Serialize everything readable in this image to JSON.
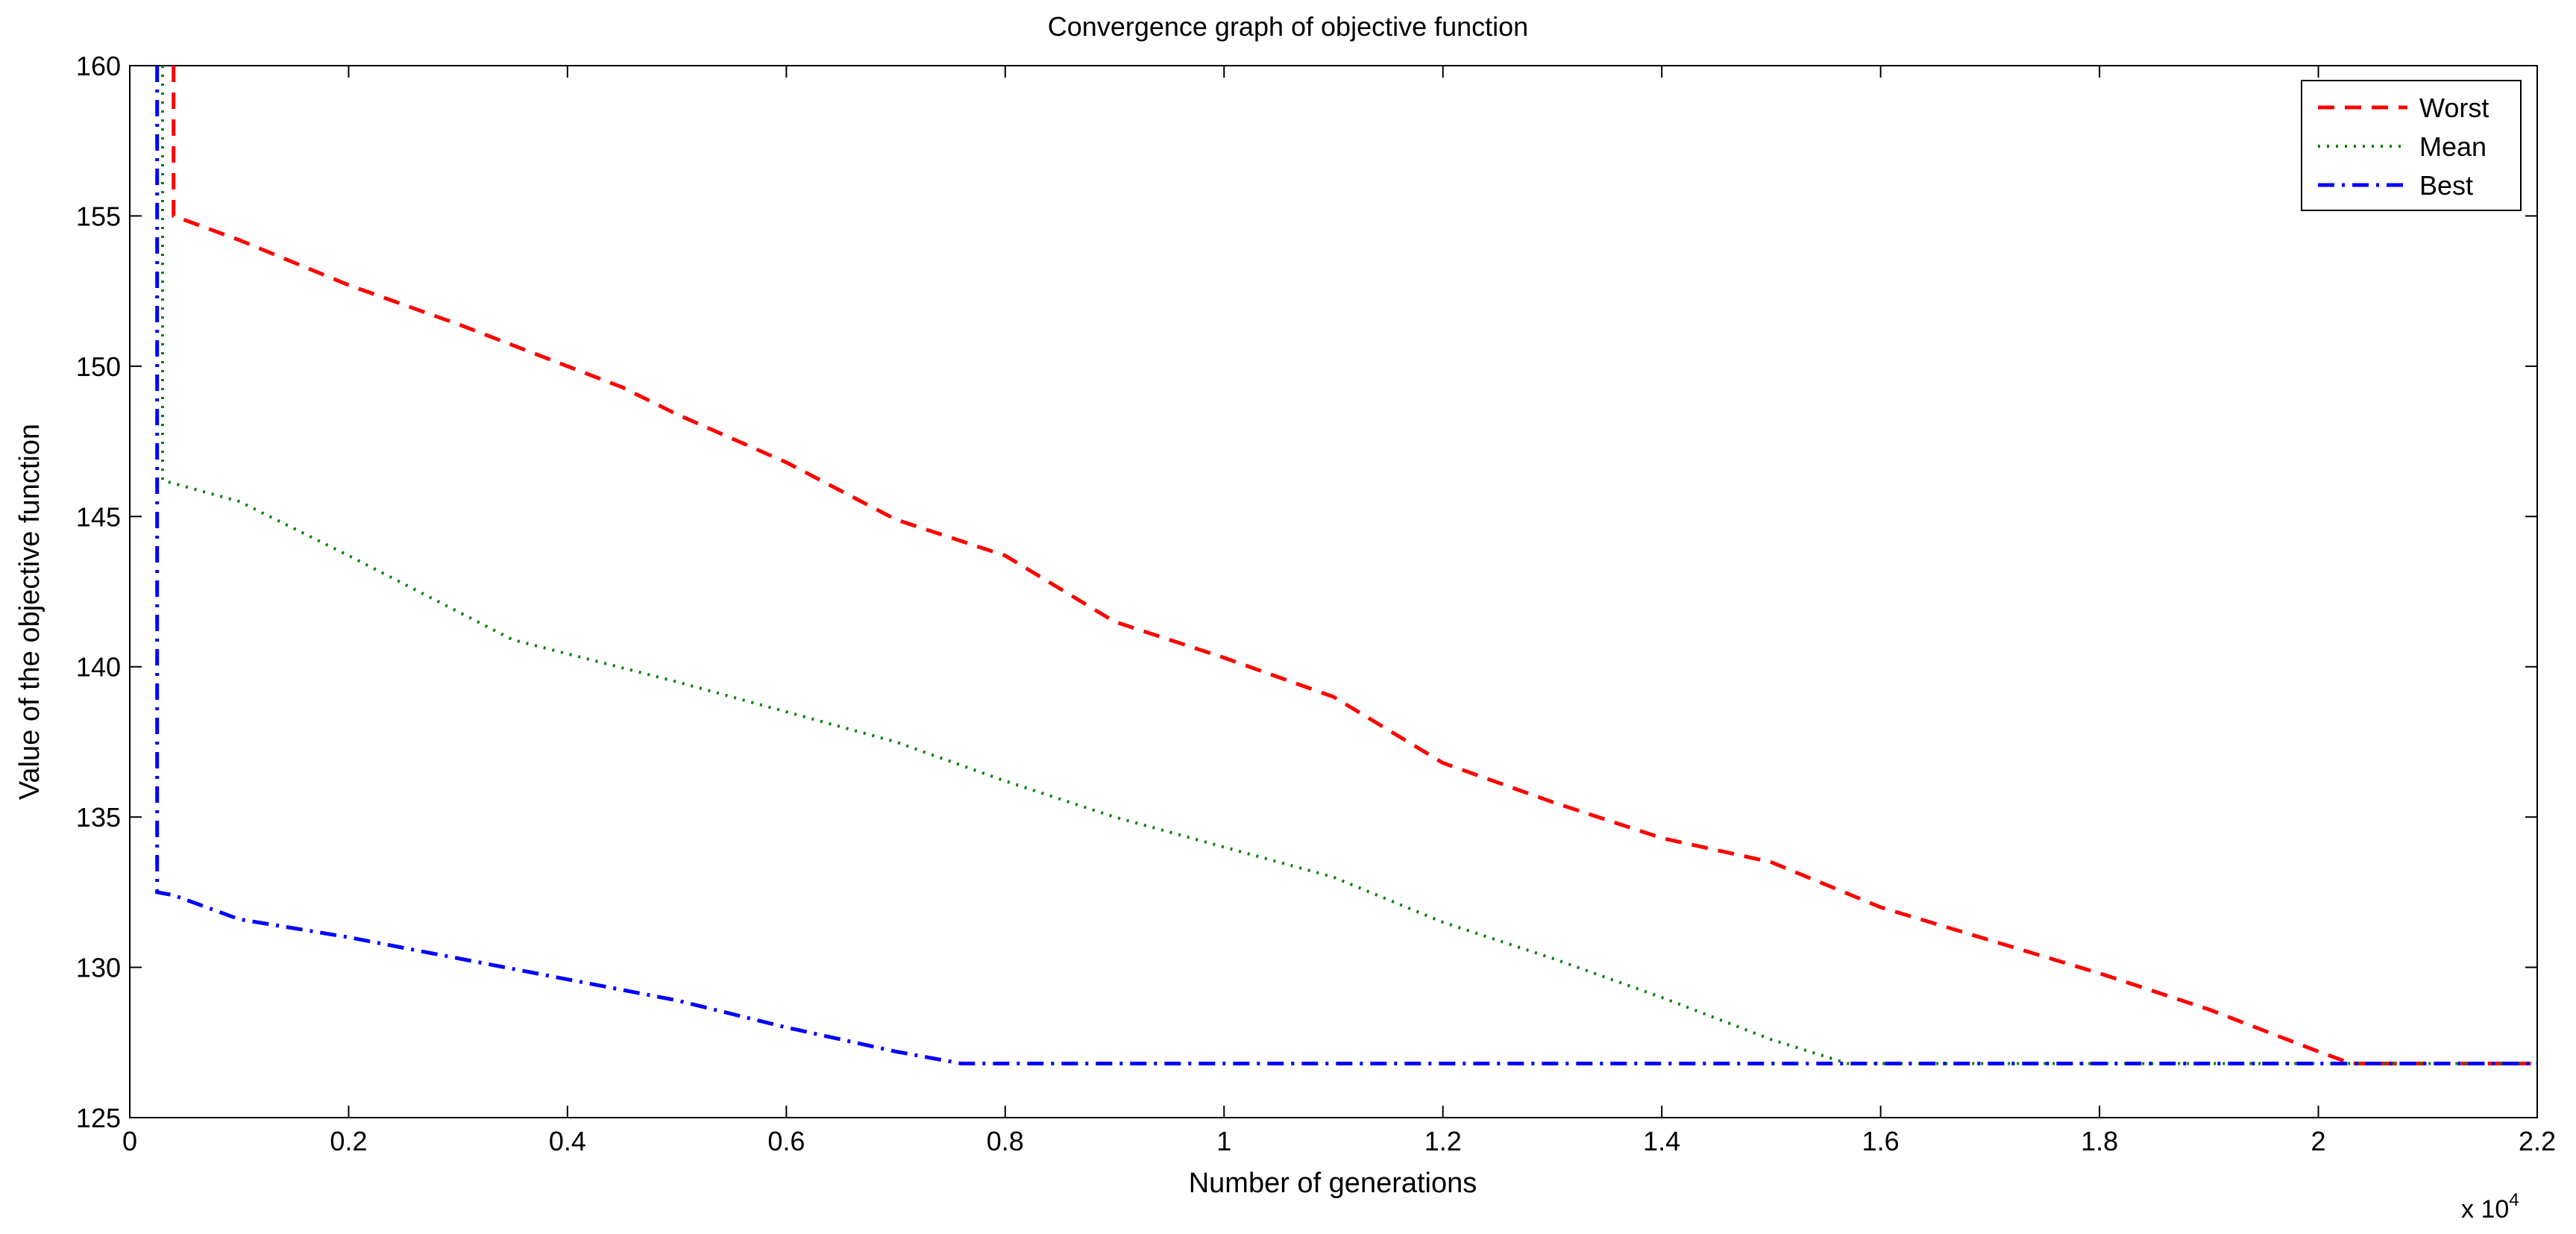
{
  "chart_data": {
    "type": "line",
    "title": "Convergence graph of objective function",
    "xlabel": "Number of generations",
    "ylabel": "Value of the objective function",
    "x_exponent_base": "x 10",
    "x_exponent_power": "4",
    "xlim": [
      0,
      2.2
    ],
    "ylim": [
      125,
      160
    ],
    "x_ticks": [
      0,
      0.2,
      0.4,
      0.6,
      0.8,
      1,
      1.2,
      1.4,
      1.6,
      1.8,
      2,
      2.2
    ],
    "x_tick_labels": [
      "0",
      "0.2",
      "0.4",
      "0.6",
      "0.8",
      "1",
      "1.2",
      "1.4",
      "1.6",
      "1.8",
      "2",
      "2.2"
    ],
    "y_ticks": [
      125,
      130,
      135,
      140,
      145,
      150,
      155,
      160
    ],
    "y_tick_labels": [
      "125",
      "130",
      "135",
      "140",
      "145",
      "150",
      "155",
      "160"
    ],
    "grid": false,
    "legend_position": "top-right",
    "series": [
      {
        "name": "Worst",
        "color": "#ff0000",
        "style": "dashed",
        "x": [
          0.04,
          0.04,
          0.1,
          0.2,
          0.3,
          0.4,
          0.45,
          0.5,
          0.6,
          0.7,
          0.8,
          0.9,
          1.0,
          1.1,
          1.2,
          1.3,
          1.4,
          1.5,
          1.6,
          1.7,
          1.8,
          1.9,
          2.0,
          2.03,
          2.2
        ],
        "y": [
          160,
          155,
          154.2,
          152.7,
          151.4,
          150.0,
          149.3,
          148.4,
          146.8,
          144.9,
          143.7,
          141.5,
          140.3,
          139.0,
          136.8,
          135.5,
          134.3,
          133.5,
          132.0,
          130.9,
          129.8,
          128.6,
          127.2,
          126.8,
          126.8
        ]
      },
      {
        "name": "Mean",
        "color": "#008000",
        "style": "dotted",
        "x": [
          0.03,
          0.03,
          0.1,
          0.2,
          0.35,
          0.5,
          0.6,
          0.7,
          0.8,
          0.9,
          1.0,
          1.1,
          1.2,
          1.3,
          1.4,
          1.5,
          1.57,
          2.2
        ],
        "y": [
          160,
          146.2,
          145.5,
          143.7,
          140.9,
          139.5,
          138.5,
          137.5,
          136.2,
          135.0,
          134.0,
          133.0,
          131.5,
          130.3,
          129.0,
          127.6,
          126.8,
          126.8
        ]
      },
      {
        "name": "Best",
        "color": "#0000ff",
        "style": "dashdot",
        "x": [
          0.025,
          0.025,
          0.04,
          0.1,
          0.2,
          0.3,
          0.4,
          0.5,
          0.6,
          0.7,
          0.76,
          2.2
        ],
        "y": [
          160,
          132.5,
          132.4,
          131.6,
          131.0,
          130.3,
          129.6,
          128.9,
          128.0,
          127.2,
          126.8,
          126.8
        ]
      }
    ]
  }
}
